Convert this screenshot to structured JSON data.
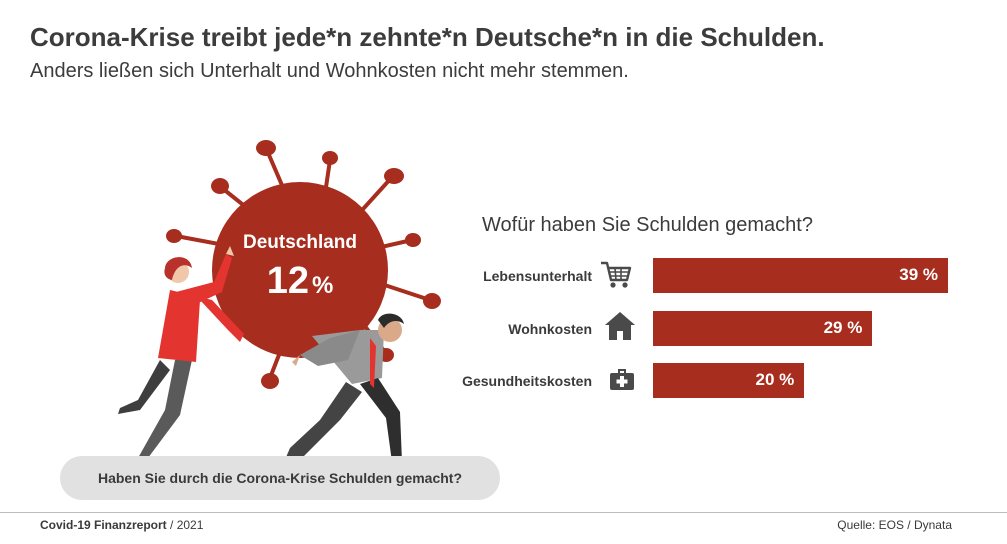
{
  "header": {
    "title": "Corona-Krise treibt jede*n zehnte*n Deutsche*n in die Schulden.",
    "subtitle": "Anders ließen sich Unterhalt und Wohnkosten nicht mehr stemmen."
  },
  "illustration": {
    "country_label": "Deutschland",
    "share_value": "12",
    "share_unit": "%",
    "question": "Haben Sie durch die Corona-Krise Schulden gemacht?"
  },
  "colors": {
    "bar": "#a72d1e",
    "virus": "#a72d1e",
    "pill": "#e1e1e1",
    "icon": "#4a4a4a"
  },
  "chart_data": {
    "type": "bar",
    "title": "Wofür haben Sie Schulden gemacht?",
    "orientation": "horizontal",
    "categories": [
      "Lebensunterhalt",
      "Wohnkosten",
      "Gesundheitskosten"
    ],
    "values": [
      39,
      29,
      20
    ],
    "value_labels": [
      "39 %",
      "29 %",
      "20 %"
    ],
    "icons": [
      "shopping-cart-icon",
      "house-icon",
      "first-aid-kit-icon"
    ],
    "xlim": [
      0,
      39
    ]
  },
  "footer": {
    "report_bold": "Covid-19 Finanzreport",
    "report_rest": " / 2021",
    "source": "Quelle: EOS / Dynata"
  }
}
